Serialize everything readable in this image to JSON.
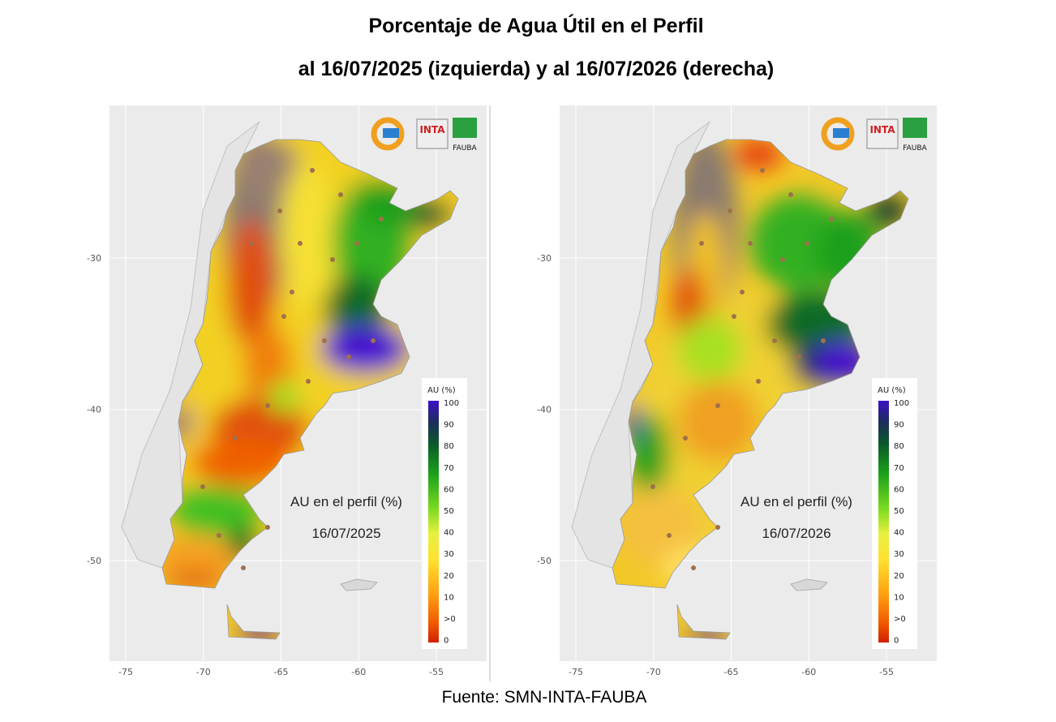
{
  "header": {
    "title": "Porcentaje de Agua Útil en el Perfil",
    "subtitle": "al 16/07/2025 (izquierda) y al 16/07/2026 (derecha)"
  },
  "panels": [
    {
      "label": "AU en el perfil (%)",
      "date": "16/07/2025",
      "legend_title": "AU (%)",
      "legend_labels": [
        100,
        90,
        80,
        70,
        60,
        50,
        40,
        30,
        20,
        10,
        ">0",
        0
      ],
      "x_ticks": [
        -75,
        -70,
        -65,
        -60,
        -55
      ],
      "y_ticks": [
        -30,
        -40,
        -50
      ],
      "logos": [
        "INTA",
        "FAUBA"
      ]
    },
    {
      "label": "AU en el perfil (%)",
      "date": "16/07/2026",
      "legend_title": "AU (%)",
      "legend_labels": [
        100,
        90,
        80,
        70,
        60,
        50,
        40,
        30,
        20,
        10,
        ">0",
        0
      ],
      "x_ticks": [
        -75,
        -70,
        -65,
        -60,
        -55
      ],
      "y_ticks": [
        -30,
        -40,
        -50
      ],
      "logos": [
        "INTA",
        "FAUBA"
      ]
    }
  ],
  "footer": {
    "source": "Fuente: SMN-INTA-FAUBA"
  }
}
